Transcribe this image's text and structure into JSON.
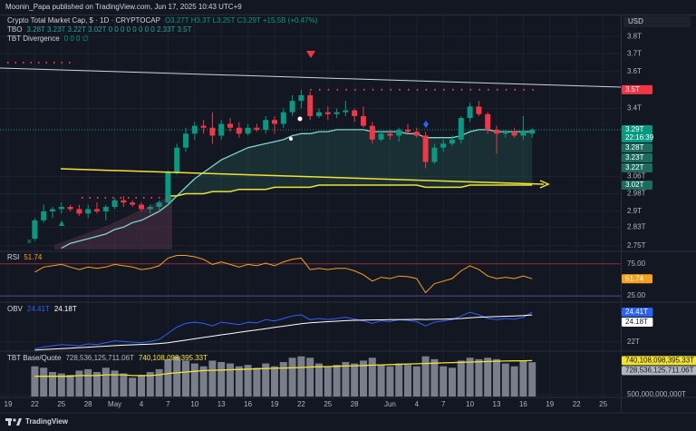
{
  "header": {
    "publisher": "Moonin_Papa published on TradingView.com, Jun 17, 2025 10:43 UTC+9",
    "currency": "USD"
  },
  "legend": {
    "symbol": "Crypto Total Market Cap, $ · 1D · CRYPTOCAP",
    "ohlc": "O3.27T H3.3T L3.25T C3.29T +15.5B (+0.47%)",
    "tbo_name": "TBO",
    "tbo_values": "3.28T 3.23T 3.22T 3.02T 0 0 0 0 0 0 0 0 2.33T 3.5T",
    "div_name": "TBT Divergence",
    "div_values": "0 0 0 ∅"
  },
  "footer": {
    "brand": "TradingView"
  },
  "chart_data": [
    {
      "type": "candlestick",
      "log_scale": true,
      "grid": true,
      "up_color": "#089981",
      "down_color": "#f23645",
      "categories": [
        "19",
        null,
        null,
        "22",
        null,
        null,
        "25",
        null,
        null,
        "28",
        null,
        null,
        "May",
        null,
        null,
        "4",
        null,
        null,
        "7",
        null,
        null,
        "10",
        null,
        null,
        "13",
        null,
        null,
        "16",
        null,
        null,
        "19",
        null,
        null,
        "22",
        null,
        null,
        "25",
        null,
        null,
        "28",
        null,
        null,
        null,
        "Jun",
        null,
        null,
        "4",
        null,
        null,
        "7",
        null,
        null,
        "10",
        null,
        null,
        "13",
        null,
        null,
        "16",
        null,
        null,
        "19",
        null,
        null,
        "22",
        null,
        null,
        "25"
      ],
      "open": [
        null,
        null,
        null,
        2.78,
        2.86,
        2.9,
        2.91,
        2.92,
        2.91,
        2.89,
        2.91,
        2.9,
        2.92,
        2.95,
        2.94,
        2.93,
        2.91,
        2.92,
        2.94,
        3.08,
        3.2,
        3.27,
        3.31,
        3.3,
        3.26,
        3.32,
        3.3,
        3.27,
        3.3,
        3.29,
        3.34,
        3.32,
        3.38,
        3.44,
        3.47,
        3.36,
        3.38,
        3.37,
        3.38,
        3.39,
        3.36,
        3.31,
        3.24,
        3.27,
        3.26,
        3.29,
        3.28,
        3.26,
        3.13,
        3.2,
        3.22,
        3.24,
        3.35,
        3.41,
        3.37,
        3.29,
        3.27,
        3.28,
        3.26,
        3.27,
        null,
        null,
        null,
        null,
        null,
        null,
        null,
        null
      ],
      "high": [
        null,
        null,
        null,
        2.87,
        2.93,
        2.92,
        2.94,
        2.93,
        2.93,
        2.93,
        2.94,
        2.93,
        2.96,
        2.97,
        2.95,
        2.94,
        2.93,
        2.95,
        3.09,
        3.22,
        3.3,
        3.33,
        3.34,
        3.38,
        3.34,
        3.35,
        3.33,
        3.32,
        3.32,
        3.36,
        3.36,
        3.4,
        3.47,
        3.5,
        3.49,
        3.4,
        3.41,
        3.4,
        3.44,
        3.4,
        3.41,
        3.33,
        3.28,
        3.29,
        3.3,
        3.32,
        3.3,
        3.28,
        3.22,
        3.24,
        3.26,
        3.36,
        3.43,
        3.44,
        3.38,
        3.31,
        3.29,
        3.3,
        3.36,
        3.3,
        null,
        null,
        null,
        null,
        null,
        null,
        null,
        null
      ],
      "low": [
        null,
        null,
        null,
        2.77,
        2.85,
        2.87,
        2.89,
        2.9,
        2.88,
        2.87,
        2.89,
        2.86,
        2.91,
        2.92,
        2.92,
        2.9,
        2.89,
        2.9,
        2.93,
        3.07,
        3.18,
        3.24,
        3.27,
        3.22,
        3.24,
        3.28,
        3.25,
        3.26,
        3.28,
        3.27,
        3.27,
        3.3,
        3.36,
        3.4,
        3.34,
        3.35,
        3.34,
        3.35,
        3.36,
        3.33,
        3.3,
        3.22,
        3.23,
        3.24,
        3.23,
        3.27,
        3.25,
        3.1,
        3.12,
        3.18,
        3.21,
        3.22,
        3.33,
        3.36,
        3.27,
        3.17,
        3.25,
        3.25,
        3.24,
        3.25,
        null,
        null,
        null,
        null,
        null,
        null,
        null,
        null
      ],
      "close": [
        null,
        null,
        null,
        2.86,
        2.9,
        2.91,
        2.92,
        2.91,
        2.89,
        2.91,
        2.9,
        2.92,
        2.95,
        2.94,
        2.93,
        2.91,
        2.92,
        2.94,
        3.08,
        3.2,
        3.27,
        3.31,
        3.3,
        3.26,
        3.32,
        3.3,
        3.27,
        3.3,
        3.29,
        3.34,
        3.32,
        3.38,
        3.44,
        3.47,
        3.36,
        3.38,
        3.37,
        3.38,
        3.39,
        3.36,
        3.31,
        3.24,
        3.27,
        3.26,
        3.29,
        3.28,
        3.26,
        3.13,
        3.2,
        3.22,
        3.24,
        3.35,
        3.41,
        3.37,
        3.29,
        3.27,
        3.28,
        3.26,
        3.28,
        3.29,
        null,
        null,
        null,
        null,
        null,
        null,
        null,
        null
      ],
      "lines": [
        {
          "color": "#7fd8cf",
          "values": [
            null,
            null,
            null,
            null,
            null,
            null,
            2.74,
            2.76,
            2.77,
            2.78,
            2.79,
            2.8,
            2.82,
            2.83,
            2.85,
            2.86,
            2.88,
            2.9,
            2.93,
            2.97,
            3.01,
            3.05,
            3.08,
            3.11,
            3.14,
            3.16,
            3.18,
            3.2,
            3.21,
            3.22,
            3.23,
            3.24,
            3.26,
            3.27,
            3.27,
            3.28,
            3.28,
            3.29,
            3.29,
            3.29,
            3.29,
            3.28,
            3.28,
            3.28,
            3.28,
            3.27,
            3.27,
            3.25,
            3.25,
            3.25,
            3.25,
            3.26,
            3.28,
            3.29,
            3.29,
            3.28,
            3.28,
            3.28,
            3.28,
            3.28,
            null,
            null,
            null,
            null,
            null,
            null,
            null,
            null
          ]
        },
        {
          "color": "#e8e337",
          "values": [
            null,
            null,
            null,
            null,
            null,
            null,
            null,
            null,
            null,
            null,
            null,
            null,
            null,
            null,
            null,
            null,
            null,
            null,
            2.97,
            2.97,
            2.98,
            2.98,
            2.98,
            2.99,
            2.99,
            2.99,
            3.0,
            3.0,
            3.0,
            3.0,
            3.01,
            3.01,
            3.01,
            3.01,
            3.01,
            3.02,
            3.02,
            3.02,
            3.02,
            3.02,
            3.02,
            3.02,
            3.02,
            3.02,
            3.02,
            3.02,
            3.02,
            3.01,
            3.01,
            3.01,
            3.01,
            3.01,
            3.02,
            3.02,
            3.02,
            3.02,
            3.02,
            3.02,
            3.02,
            3.02,
            null,
            null,
            null,
            null,
            null,
            null,
            null,
            null
          ]
        }
      ],
      "ylim": [
        2.73,
        3.92
      ],
      "yticks": [
        {
          "value": 3.8,
          "label": "3.8T"
        },
        {
          "value": 3.7,
          "label": "3.7T"
        },
        {
          "value": 3.6,
          "label": "3.6T"
        },
        {
          "value": 3.4,
          "label": "3.4T"
        },
        {
          "value": 3.06,
          "label": "3.06T"
        },
        {
          "value": 2.98,
          "label": "2.98T"
        },
        {
          "value": 2.9,
          "label": "2.9T"
        },
        {
          "value": 2.83,
          "label": "2.83T"
        },
        {
          "value": 2.75,
          "label": "2.75T"
        }
      ],
      "price_labels": [
        {
          "value": 3.5,
          "label": "3.5T",
          "color": "#f23645"
        },
        {
          "value": 3.29,
          "label": "3.29T",
          "color": "#089981",
          "countdown": "22:16:39"
        },
        {
          "value": 3.28,
          "label": "3.28T",
          "color": "#1c6b5c"
        },
        {
          "value": 3.23,
          "label": "3.23T",
          "color": "#1c6b5c"
        },
        {
          "value": 3.22,
          "label": "3.22T",
          "color": "#1c6b5c"
        },
        {
          "value": 3.02,
          "label": "3.02T",
          "color": "#1c6b5c"
        }
      ]
    },
    {
      "type": "line",
      "title": "RSI",
      "series": [
        {
          "color": "#f7a21b",
          "values": [
            null,
            null,
            null,
            62,
            70,
            72,
            74,
            70,
            66,
            70,
            68,
            70,
            74,
            72,
            70,
            66,
            68,
            72,
            84,
            88,
            88,
            86,
            82,
            74,
            78,
            74,
            70,
            74,
            72,
            76,
            72,
            78,
            82,
            84,
            66,
            68,
            66,
            68,
            68,
            64,
            58,
            48,
            54,
            52,
            56,
            55,
            52,
            30,
            44,
            48,
            52,
            64,
            72,
            66,
            56,
            52,
            54,
            52,
            56,
            51.74,
            null,
            null,
            null,
            null,
            null,
            null,
            null,
            null
          ]
        }
      ],
      "ylim": [
        16.7,
        93
      ],
      "yticks": [
        {
          "value": 75,
          "label": "75.00"
        },
        {
          "value": 25,
          "label": "25.00"
        }
      ],
      "price_labels": [
        {
          "value": 51.74,
          "label": "51.74",
          "color": "#f7a21b"
        }
      ]
    },
    {
      "type": "line",
      "title": "OBV",
      "series": [
        {
          "color": "#2962ff",
          "values": [
            null,
            null,
            null,
            21.45,
            21.6,
            21.7,
            21.8,
            21.75,
            21.7,
            21.85,
            21.8,
            21.95,
            22.1,
            22.05,
            22.0,
            21.95,
            22.05,
            22.2,
            22.7,
            23.2,
            23.5,
            23.6,
            23.5,
            23.3,
            23.6,
            23.5,
            23.4,
            23.6,
            23.55,
            23.8,
            23.7,
            23.9,
            24.1,
            24.2,
            23.8,
            23.9,
            23.8,
            23.9,
            24.0,
            23.85,
            23.7,
            23.5,
            23.7,
            23.65,
            23.8,
            23.75,
            23.65,
            23.3,
            23.6,
            23.7,
            23.8,
            24.1,
            24.4,
            24.2,
            23.9,
            23.8,
            23.9,
            23.85,
            24.0,
            24.41,
            null,
            null,
            null,
            null,
            null,
            null,
            null,
            null
          ]
        },
        {
          "color": "#ffffff",
          "values": [
            null,
            null,
            null,
            21.35,
            21.39,
            21.43,
            21.47,
            21.51,
            21.55,
            21.59,
            21.63,
            21.67,
            21.71,
            21.75,
            21.78,
            21.81,
            21.84,
            21.88,
            21.95,
            22.05,
            22.15,
            22.26,
            22.37,
            22.47,
            22.58,
            22.68,
            22.78,
            22.88,
            22.98,
            23.08,
            23.18,
            23.28,
            23.38,
            23.48,
            23.55,
            23.6,
            23.64,
            23.68,
            23.72,
            23.75,
            23.77,
            23.78,
            23.79,
            23.8,
            23.81,
            23.82,
            23.83,
            23.82,
            23.83,
            23.85,
            23.87,
            23.9,
            23.95,
            24.0,
            24.03,
            24.05,
            24.08,
            24.1,
            24.13,
            24.18,
            null,
            null,
            null,
            null,
            null,
            null,
            null,
            null
          ]
        }
      ],
      "ylim": [
        21.34,
        25.14
      ],
      "yticks": [
        {
          "value": 22,
          "label": "22T"
        }
      ],
      "price_labels": [
        {
          "value": 24.41,
          "label": "24.41T",
          "color": "#2962ff"
        },
        {
          "value": 24.18,
          "label": "24.18T",
          "color": "#ffffff"
        }
      ]
    },
    {
      "type": "bar",
      "title": "TBT Base/Quote",
      "color": "#8c909c",
      "values": [
        null,
        null,
        null,
        700000000000.0,
        690000000000.0,
        660000000000.0,
        650000000000.0,
        640000000000.0,
        670000000000.0,
        680000000000.0,
        660000000000.0,
        690000000000.0,
        670000000000.0,
        650000000000.0,
        620000000000.0,
        640000000000.0,
        660000000000.0,
        680000000000.0,
        750000000000.0,
        770000000000.0,
        740000000000.0,
        720000000000.0,
        700000000000.0,
        740000000000.0,
        730000000000.0,
        720000000000.0,
        700000000000.0,
        710000000000.0,
        690000000000.0,
        720000000000.0,
        700000000000.0,
        730000000000.0,
        760000000000.0,
        770000000000.0,
        760000000000.0,
        720000000000.0,
        700000000000.0,
        710000000000.0,
        730000000000.0,
        720000000000.0,
        740000000000.0,
        760000000000.0,
        710000000000.0,
        700000000000.0,
        720000000000.0,
        710000000000.0,
        700000000000.0,
        770000000000.0,
        750000000000.0,
        700000000000.0,
        690000000000.0,
        740000000000.0,
        760000000000.0,
        750000000000.0,
        760000000000.0,
        750000000000.0,
        720000000000.0,
        700000000000.0,
        740000000000.0,
        728536125711.06,
        null,
        null,
        null,
        null,
        null,
        null,
        null,
        null
      ],
      "lines": [
        {
          "color": "#f2e230",
          "values": [
            null,
            null,
            null,
            630000000000.0,
            630000000000.0,
            630000000000.0,
            630000000000.0,
            630000000000.0,
            635000000000.0,
            635000000000.0,
            635000000000.0,
            640000000000.0,
            640000000000.0,
            640000000000.0,
            635000000000.0,
            635000000000.0,
            635000000000.0,
            640000000000.0,
            650000000000.0,
            655000000000.0,
            660000000000.0,
            665000000000.0,
            670000000000.0,
            672000000000.0,
            674000000000.0,
            676000000000.0,
            678000000000.0,
            680000000000.0,
            682000000000.0,
            684000000000.0,
            686000000000.0,
            688000000000.0,
            690000000000.0,
            692000000000.0,
            695000000000.0,
            697000000000.0,
            698000000000.0,
            700000000000.0,
            702000000000.0,
            704000000000.0,
            706000000000.0,
            708000000000.0,
            710000000000.0,
            712000000000.0,
            714000000000.0,
            716000000000.0,
            718000000000.0,
            720000000000.0,
            722000000000.0,
            724000000000.0,
            726000000000.0,
            728000000000.0,
            730000000000.0,
            732000000000.0,
            734000000000.0,
            736000000000.0,
            737000000000.0,
            738000000000.0,
            739000000000.0,
            740108098395.33,
            null,
            null,
            null,
            null,
            null,
            null,
            null,
            null
          ]
        }
      ],
      "ylim": [
        488000000000.0,
        800000000000.0
      ],
      "yticks": [
        {
          "value": 500000000000,
          "label": "500,000,000,000T"
        }
      ],
      "price_labels": [
        {
          "value": 740108098395.33,
          "label": "740,108,098,395.33T",
          "color": "#f2e230"
        },
        {
          "value": 728536125711.06,
          "label": "728,536,125,711.06T",
          "color": "#b2b5be"
        }
      ]
    }
  ]
}
